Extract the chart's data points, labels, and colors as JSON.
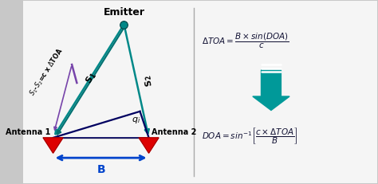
{
  "bg_color": "#c8c8c8",
  "panel_color": "#e8e8e8",
  "teal_color": "#007070",
  "dark_teal": "#005858",
  "teal_line": "#008888",
  "red_color": "#dd0000",
  "blue_color": "#0044cc",
  "arrow_teal": "#009999",
  "navy": "#000060",
  "purple": "#7744aa",
  "ant1_label": "Antenna 1",
  "ant2_label": "Antenna 2",
  "emitter_label": "Emitter",
  "B_label": "B",
  "text_color": "#111111",
  "eq_color": "#111133"
}
